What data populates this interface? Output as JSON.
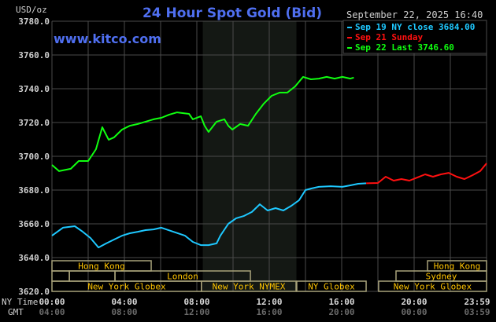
{
  "chart_data": {
    "type": "line",
    "title": "24 Hour Spot Gold (Bid)",
    "watermark": "www.kitco.com",
    "timestamp": "September 22, 2025 16:40",
    "ylabel": "USD/oz",
    "ylim": [
      3620,
      3780
    ],
    "yticks": [
      "3780.0",
      "3760.0",
      "3740.0",
      "3720.0",
      "3700.0",
      "3680.0",
      "3660.0",
      "3640.0",
      "3620.0"
    ],
    "ytick_values": [
      3780,
      3760,
      3740,
      3720,
      3700,
      3680,
      3660,
      3640,
      3620
    ],
    "xlim_hours": [
      0,
      24
    ],
    "x_row_labels": {
      "ny": "NY Time",
      "gmt": "GMT"
    },
    "xticks_ny": [
      "00:00",
      "04:00",
      "08:00",
      "12:00",
      "16:00",
      "20:00",
      "23:59"
    ],
    "xticks_gmt": [
      "04:00",
      "08:00",
      "12:00",
      "16:00",
      "20:00",
      "00:00",
      "03:59"
    ],
    "xtick_hours": [
      0,
      4,
      8,
      12,
      16,
      20,
      24
    ],
    "grid": true,
    "background": "#000000",
    "shaded_session_hours": [
      8.33,
      13.5
    ],
    "legend_position": "top-right",
    "series": [
      {
        "name": "Sep 19 NY close 3684.00",
        "color": "#1ec8ff",
        "x": [
          0,
          0.61,
          1.26,
          1.7,
          2.13,
          2.57,
          3,
          3.43,
          3.87,
          4.3,
          4.74,
          5.17,
          5.61,
          6.04,
          6.7,
          7.35,
          7.78,
          8.22,
          8.65,
          9.09,
          9.3,
          9.74,
          10.17,
          10.61,
          11.04,
          11.48,
          11.91,
          12.35,
          12.78,
          13.22,
          13.65,
          14,
          14.3,
          14.74,
          15.39,
          16.04,
          16.48,
          16.91,
          17.35
        ],
        "y": [
          3653,
          3657.7,
          3658.6,
          3655.3,
          3651.6,
          3646,
          3648.4,
          3650.7,
          3653,
          3654.4,
          3655.3,
          3656.3,
          3656.7,
          3657.7,
          3655.3,
          3653,
          3649.3,
          3647.4,
          3647.4,
          3648.4,
          3653,
          3660,
          3663.3,
          3664.7,
          3667,
          3671.6,
          3667.9,
          3669.3,
          3667.9,
          3670.7,
          3674,
          3680,
          3680.9,
          3681.9,
          3682.3,
          3681.9,
          3682.8,
          3683.7,
          3684
        ]
      },
      {
        "name": "Sep 21 Sunday",
        "color": "#ff1010",
        "x": [
          17.35,
          18,
          18.43,
          18.87,
          19.3,
          19.74,
          20.17,
          20.61,
          21.04,
          21.48,
          21.91,
          22.35,
          22.78,
          23.22,
          23.65,
          24
        ],
        "y": [
          3684,
          3684.2,
          3687.9,
          3685.6,
          3686.5,
          3685.6,
          3687.4,
          3689.3,
          3687.9,
          3689.3,
          3690.2,
          3687.9,
          3686.5,
          3688.8,
          3691.2,
          3695.8
        ]
      },
      {
        "name": "Sep 22 Last 3746.60",
        "color": "#10ff10",
        "x": [
          0,
          0.39,
          1.04,
          1.48,
          2,
          2.43,
          2.78,
          3.13,
          3.43,
          3.87,
          4.3,
          4.74,
          5.17,
          5.61,
          6.04,
          6.48,
          6.91,
          7.57,
          7.78,
          8.22,
          8.43,
          8.65,
          9.09,
          9.52,
          9.74,
          9.96,
          10.39,
          10.83,
          11.26,
          11.7,
          12.13,
          12.57,
          13,
          13.43,
          13.87,
          14.3,
          14.74,
          15.17,
          15.61,
          16.04,
          16.48,
          16.67
        ],
        "y": [
          3694.9,
          3691.2,
          3692.6,
          3697.2,
          3697.2,
          3704.2,
          3717.2,
          3709.8,
          3711.2,
          3715.8,
          3718.1,
          3719.1,
          3720.5,
          3721.9,
          3722.8,
          3724.7,
          3726,
          3725.1,
          3721.9,
          3723.7,
          3718.1,
          3714.4,
          3720.5,
          3721.9,
          3718.1,
          3715.8,
          3719.1,
          3718.1,
          3725.1,
          3731.2,
          3735.8,
          3737.7,
          3737.7,
          3741.4,
          3747,
          3745.6,
          3746,
          3747,
          3746,
          3747,
          3746,
          3746.6
        ]
      }
    ],
    "sessions": [
      {
        "label": "Hong Kong",
        "row": 0,
        "start": 0,
        "end": 5.48
      },
      {
        "label": "Hong Kong",
        "row": 0,
        "start": 20.74,
        "end": 24
      },
      {
        "label": "",
        "row": 1,
        "start": 0,
        "end": 0.96
      },
      {
        "label": "",
        "row": 1,
        "start": 0.96,
        "end": 3.48
      },
      {
        "label": "London",
        "row": 1,
        "start": 3.48,
        "end": 10.96
      },
      {
        "label": "Sydney",
        "row": 1,
        "start": 19.0,
        "end": 24
      },
      {
        "label": "New York Globex",
        "row": 2,
        "start": 0,
        "end": 8.26
      },
      {
        "label": "New York NYMEX",
        "row": 2,
        "start": 8.26,
        "end": 13.48
      },
      {
        "label": "NY Globex",
        "row": 2,
        "start": 13.52,
        "end": 17.35
      },
      {
        "label": "New York Globex",
        "row": 2,
        "start": 18.04,
        "end": 24
      }
    ],
    "session_colors": {
      "border": "#a8a27a",
      "text": "#ffc400"
    }
  }
}
